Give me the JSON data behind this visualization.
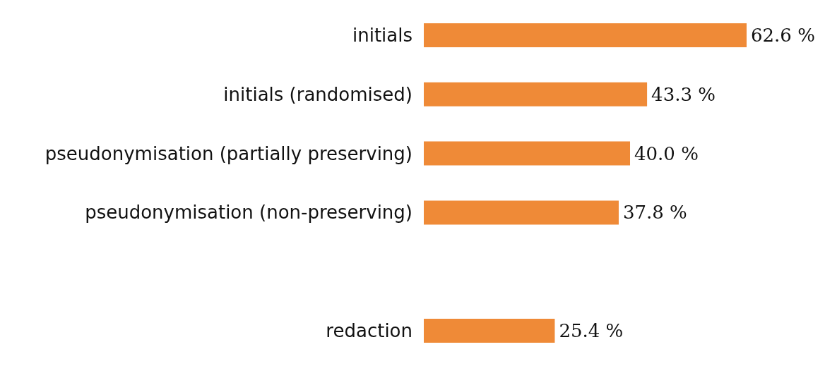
{
  "chart_data": {
    "type": "bar",
    "orientation": "horizontal",
    "categories": [
      "initials",
      "initials (randomised)",
      "pseudonymisation (partially preserving)",
      "pseudonymisation (non-preserving)",
      null,
      "redaction"
    ],
    "values": [
      62.6,
      43.3,
      40.0,
      37.8,
      null,
      25.4
    ],
    "value_labels": [
      "62.6 %",
      "43.3 %",
      "40.0 %",
      "37.8 %",
      null,
      "25.4 %"
    ],
    "color": "#ef8a37"
  }
}
